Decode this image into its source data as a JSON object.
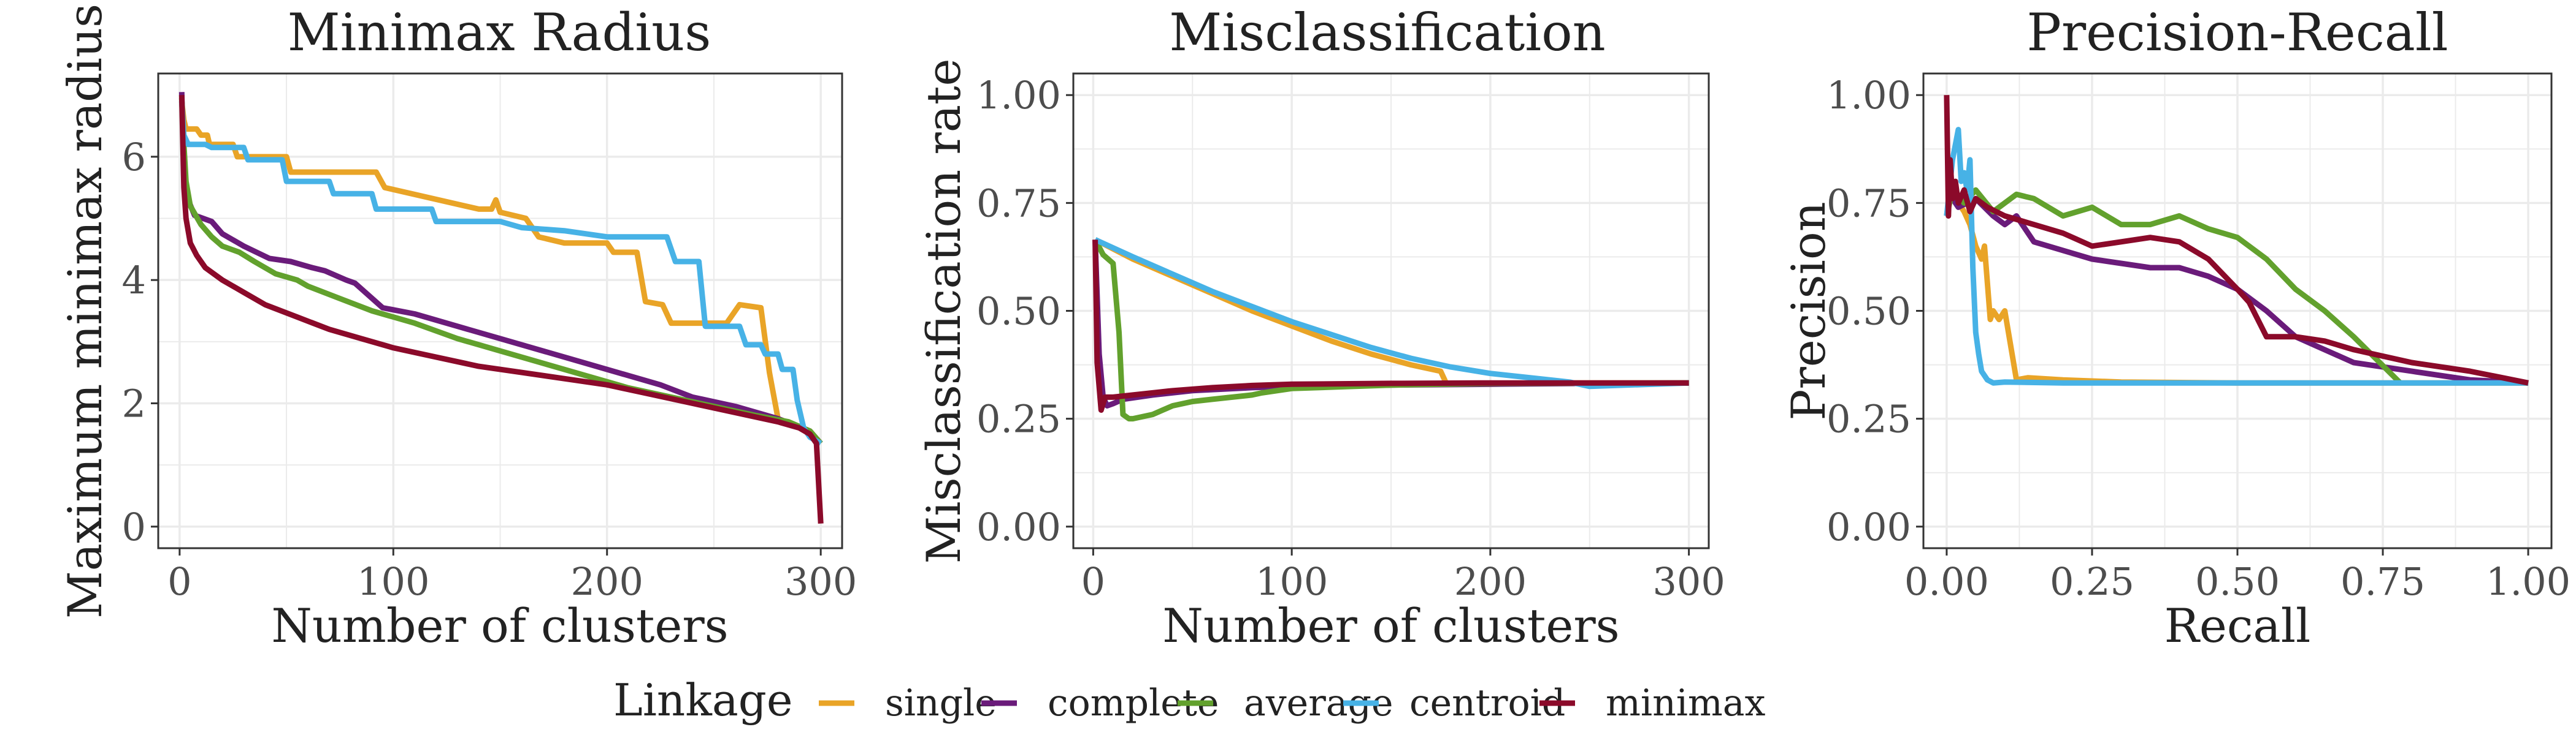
{
  "colors": {
    "single": "#E9A427",
    "complete": "#6A1B7A",
    "average": "#62A12D",
    "centroid": "#47B2E6",
    "minimax": "#8B0A2A",
    "grid": "#ebebeb",
    "panel_border": "#333333",
    "background": "#ffffff"
  },
  "legend": {
    "title": "Linkage",
    "items": [
      {
        "key": "single",
        "label": "single"
      },
      {
        "key": "complete",
        "label": "complete"
      },
      {
        "key": "average",
        "label": "average"
      },
      {
        "key": "centroid",
        "label": "centroid"
      },
      {
        "key": "minimax",
        "label": "minimax"
      }
    ]
  },
  "chart_data": [
    {
      "type": "line",
      "title": "Minimax Radius",
      "xlabel": "Number of clusters",
      "ylabel": "Maximum minimax radius",
      "xlim": [
        -10,
        310
      ],
      "ylim": [
        -0.35,
        7.35
      ],
      "xticks": [
        0,
        100,
        200,
        300
      ],
      "xtick_labels": [
        "0",
        "100",
        "200",
        "300"
      ],
      "yticks": [
        0,
        2,
        4,
        6
      ],
      "ytick_labels": [
        "0",
        "2",
        "4",
        "6"
      ],
      "series": [
        {
          "name": "single",
          "x": [
            1,
            2,
            3,
            8,
            10,
            13,
            14,
            25,
            27,
            50,
            52,
            92,
            96,
            140,
            146,
            148,
            150,
            162,
            165,
            168,
            180,
            200,
            203,
            214,
            218,
            226,
            230,
            256,
            262,
            272,
            276,
            280,
            295,
            300
          ],
          "y": [
            6.9,
            6.6,
            6.45,
            6.45,
            6.35,
            6.35,
            6.2,
            6.2,
            6.0,
            6.0,
            5.75,
            5.75,
            5.5,
            5.15,
            5.15,
            5.3,
            5.1,
            5.0,
            4.85,
            4.7,
            4.6,
            4.6,
            4.45,
            4.45,
            3.65,
            3.6,
            3.3,
            3.3,
            3.6,
            3.55,
            2.5,
            1.75,
            1.55,
            1.35
          ]
        },
        {
          "name": "complete",
          "x": [
            1,
            2,
            4,
            7,
            15,
            20,
            30,
            42,
            52,
            62,
            68,
            78,
            82,
            95,
            110,
            130,
            150,
            170,
            190,
            210,
            225,
            240,
            260,
            280,
            295,
            300
          ],
          "y": [
            7.05,
            5.8,
            5.3,
            5.05,
            4.95,
            4.75,
            4.55,
            4.35,
            4.3,
            4.2,
            4.15,
            4.0,
            3.95,
            3.55,
            3.45,
            3.25,
            3.05,
            2.85,
            2.65,
            2.45,
            2.3,
            2.1,
            1.95,
            1.75,
            1.55,
            1.35
          ]
        },
        {
          "name": "average",
          "x": [
            1,
            2,
            3,
            5,
            10,
            15,
            20,
            28,
            35,
            45,
            55,
            60,
            75,
            90,
            110,
            130,
            150,
            170,
            190,
            210,
            230,
            250,
            270,
            285,
            295,
            300
          ],
          "y": [
            6.95,
            6.2,
            5.6,
            5.2,
            4.9,
            4.7,
            4.55,
            4.45,
            4.3,
            4.1,
            4.0,
            3.9,
            3.7,
            3.5,
            3.3,
            3.05,
            2.85,
            2.65,
            2.45,
            2.25,
            2.1,
            1.95,
            1.8,
            1.7,
            1.55,
            1.35
          ]
        },
        {
          "name": "centroid",
          "x": [
            1,
            2,
            4,
            12,
            15,
            30,
            32,
            48,
            50,
            70,
            72,
            90,
            92,
            118,
            120,
            150,
            160,
            180,
            200,
            228,
            232,
            243,
            246,
            262,
            265,
            272,
            274,
            280,
            282,
            287,
            289,
            292,
            295,
            300
          ],
          "y": [
            6.9,
            6.35,
            6.2,
            6.2,
            6.15,
            6.15,
            5.95,
            5.95,
            5.6,
            5.6,
            5.4,
            5.4,
            5.15,
            5.15,
            4.95,
            4.95,
            4.85,
            4.8,
            4.7,
            4.7,
            4.3,
            4.3,
            3.25,
            3.25,
            2.95,
            2.95,
            2.8,
            2.8,
            2.55,
            2.55,
            2.05,
            1.6,
            1.45,
            1.35
          ]
        },
        {
          "name": "minimax",
          "x": [
            1,
            2,
            3,
            5,
            8,
            12,
            20,
            30,
            40,
            55,
            70,
            85,
            100,
            120,
            140,
            160,
            180,
            200,
            220,
            240,
            260,
            280,
            290,
            295,
            298,
            300
          ],
          "y": [
            7.0,
            5.5,
            5.0,
            4.6,
            4.4,
            4.2,
            4.0,
            3.8,
            3.6,
            3.4,
            3.2,
            3.05,
            2.9,
            2.75,
            2.6,
            2.5,
            2.4,
            2.3,
            2.15,
            2.0,
            1.85,
            1.7,
            1.6,
            1.5,
            1.35,
            0.05
          ]
        }
      ]
    },
    {
      "type": "line",
      "title": "Misclassification",
      "xlabel": "Number of clusters",
      "ylabel": "Misclassification rate",
      "xlim": [
        -10,
        310
      ],
      "ylim": [
        -0.05,
        1.05
      ],
      "xticks": [
        0,
        100,
        200,
        300
      ],
      "xtick_labels": [
        "0",
        "100",
        "200",
        "300"
      ],
      "yticks": [
        0,
        0.25,
        0.5,
        0.75,
        1.0
      ],
      "ytick_labels": [
        "0.00",
        "0.25",
        "0.50",
        "0.75",
        "1.00"
      ],
      "series": [
        {
          "name": "single",
          "x": [
            1,
            20,
            40,
            60,
            80,
            100,
            120,
            140,
            160,
            170,
            175,
            178,
            200,
            240,
            300
          ],
          "y": [
            0.665,
            0.62,
            0.58,
            0.54,
            0.5,
            0.465,
            0.43,
            0.4,
            0.375,
            0.365,
            0.36,
            0.33,
            0.33,
            0.333,
            0.333
          ]
        },
        {
          "name": "complete",
          "x": [
            1,
            3,
            5,
            7,
            10,
            15,
            30,
            50,
            80,
            100,
            150,
            200,
            250,
            300
          ],
          "y": [
            0.665,
            0.4,
            0.3,
            0.28,
            0.285,
            0.295,
            0.305,
            0.315,
            0.322,
            0.325,
            0.328,
            0.33,
            0.332,
            0.333
          ]
        },
        {
          "name": "average",
          "x": [
            1,
            5,
            10,
            13,
            15,
            18,
            20,
            25,
            30,
            35,
            40,
            50,
            60,
            70,
            80,
            85,
            100,
            150,
            200,
            300
          ],
          "y": [
            0.665,
            0.63,
            0.61,
            0.45,
            0.26,
            0.25,
            0.25,
            0.255,
            0.26,
            0.27,
            0.28,
            0.29,
            0.295,
            0.3,
            0.305,
            0.31,
            0.32,
            0.328,
            0.332,
            0.333
          ]
        },
        {
          "name": "centroid",
          "x": [
            1,
            20,
            40,
            60,
            80,
            100,
            120,
            140,
            160,
            180,
            200,
            220,
            240,
            250,
            300
          ],
          "y": [
            0.665,
            0.625,
            0.585,
            0.545,
            0.51,
            0.475,
            0.445,
            0.415,
            0.39,
            0.37,
            0.355,
            0.345,
            0.335,
            0.325,
            0.333
          ]
        },
        {
          "name": "minimax",
          "x": [
            1,
            2,
            4,
            6,
            10,
            20,
            40,
            60,
            80,
            100,
            150,
            200,
            250,
            300
          ],
          "y": [
            0.665,
            0.38,
            0.27,
            0.3,
            0.3,
            0.305,
            0.315,
            0.322,
            0.327,
            0.33,
            0.332,
            0.333,
            0.333,
            0.333
          ]
        }
      ]
    },
    {
      "type": "line",
      "title": "Precision-Recall",
      "xlabel": "Recall",
      "ylabel": "Precision",
      "xlim": [
        -0.04,
        1.04
      ],
      "ylim": [
        -0.05,
        1.05
      ],
      "xticks": [
        0,
        0.25,
        0.5,
        0.75,
        1.0
      ],
      "xtick_labels": [
        "0.00",
        "0.25",
        "0.50",
        "0.75",
        "1.00"
      ],
      "yticks": [
        0,
        0.25,
        0.5,
        0.75,
        1.0
      ],
      "ytick_labels": [
        "0.00",
        "0.25",
        "0.50",
        "0.75",
        "1.00"
      ],
      "series": [
        {
          "name": "single",
          "x": [
            0.0,
            0.01,
            0.02,
            0.03,
            0.04,
            0.05,
            0.06,
            0.065,
            0.075,
            0.08,
            0.09,
            0.1,
            0.12,
            0.14,
            0.2,
            0.3,
            0.5,
            1.0
          ],
          "y": [
            0.72,
            0.78,
            0.75,
            0.73,
            0.7,
            0.65,
            0.62,
            0.65,
            0.48,
            0.5,
            0.48,
            0.5,
            0.34,
            0.345,
            0.34,
            0.335,
            0.333,
            0.333
          ]
        },
        {
          "name": "complete",
          "x": [
            0.0,
            0.005,
            0.02,
            0.05,
            0.08,
            0.1,
            0.12,
            0.15,
            0.2,
            0.25,
            0.3,
            0.35,
            0.4,
            0.45,
            0.5,
            0.55,
            0.6,
            0.7,
            0.8,
            0.9,
            1.0
          ],
          "y": [
            0.72,
            0.77,
            0.74,
            0.76,
            0.72,
            0.7,
            0.72,
            0.66,
            0.64,
            0.62,
            0.61,
            0.6,
            0.6,
            0.58,
            0.55,
            0.5,
            0.44,
            0.38,
            0.36,
            0.34,
            0.333
          ]
        },
        {
          "name": "average",
          "x": [
            0.0,
            0.01,
            0.03,
            0.05,
            0.08,
            0.1,
            0.12,
            0.15,
            0.2,
            0.25,
            0.3,
            0.35,
            0.4,
            0.45,
            0.5,
            0.55,
            0.6,
            0.65,
            0.7,
            0.78
          ],
          "y": [
            0.72,
            0.78,
            0.75,
            0.78,
            0.73,
            0.75,
            0.77,
            0.76,
            0.72,
            0.74,
            0.7,
            0.7,
            0.72,
            0.69,
            0.67,
            0.62,
            0.55,
            0.5,
            0.44,
            0.333
          ]
        },
        {
          "name": "centroid",
          "x": [
            0.0,
            0.01,
            0.02,
            0.025,
            0.03,
            0.035,
            0.04,
            0.045,
            0.05,
            0.055,
            0.06,
            0.07,
            0.08,
            0.1,
            0.2,
            0.5,
            1.0
          ],
          "y": [
            0.72,
            0.85,
            0.92,
            0.8,
            0.82,
            0.78,
            0.85,
            0.6,
            0.45,
            0.4,
            0.36,
            0.34,
            0.333,
            0.335,
            0.333,
            0.333,
            0.333
          ]
        },
        {
          "name": "minimax",
          "x": [
            0.0,
            0.003,
            0.006,
            0.01,
            0.015,
            0.02,
            0.03,
            0.04,
            0.05,
            0.07,
            0.1,
            0.15,
            0.2,
            0.25,
            0.3,
            0.35,
            0.4,
            0.45,
            0.5,
            0.52,
            0.55,
            0.6,
            0.65,
            0.7,
            0.8,
            0.9,
            1.0
          ],
          "y": [
            1.0,
            0.72,
            0.85,
            0.76,
            0.8,
            0.75,
            0.78,
            0.73,
            0.76,
            0.74,
            0.72,
            0.7,
            0.68,
            0.65,
            0.66,
            0.67,
            0.66,
            0.62,
            0.55,
            0.52,
            0.44,
            0.44,
            0.43,
            0.41,
            0.38,
            0.36,
            0.333
          ]
        }
      ]
    }
  ]
}
